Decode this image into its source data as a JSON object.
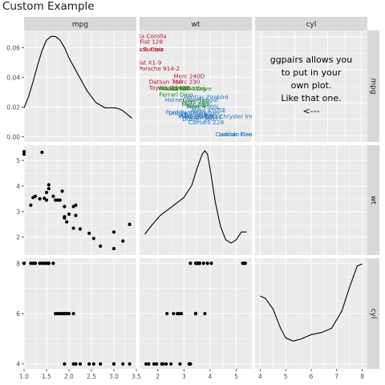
{
  "title": "Custom Example",
  "strips": {
    "top": [
      "mpg",
      "wt",
      "cyl"
    ],
    "right": [
      "mpg",
      "wt",
      "cyl"
    ]
  },
  "colors": {
    "panel_bg": "#ebebeb",
    "strip_bg": "#d9d9d9",
    "grid_major": "#ffffff",
    "tick_text": "#4d4d4d",
    "strip_text": "#1a1a1a",
    "label_red": "#b2182b",
    "label_green": "#1b8a1b",
    "label_blue": "#1f6fc1"
  },
  "custom_panel_text": [
    "ggpairs allows you",
    "to put in your",
    "own plot.",
    "Like that one.",
    "<---"
  ],
  "chart_data": {
    "type": "scatter",
    "kind": "pairs-matrix",
    "variables": [
      "mpg",
      "wt",
      "cyl"
    ],
    "axes": {
      "x": [
        {
          "var": "mpg",
          "range": [
            1.0,
            3.5
          ],
          "ticks": [
            1.0,
            1.5,
            2.0,
            2.5,
            3.0,
            3.5
          ]
        },
        {
          "var": "wt",
          "range": [
            1.3,
            5.6
          ],
          "ticks": [
            2,
            3,
            4,
            5
          ]
        },
        {
          "var": "cyl",
          "range": [
            3.8,
            8.2
          ],
          "ticks": [
            4,
            5,
            6,
            7,
            8
          ]
        }
      ],
      "y": [
        {
          "var": "mpg",
          "range": [
            -0.0035,
            0.0715
          ],
          "ticks": [
            0.0,
            0.02,
            0.04,
            0.06
          ]
        },
        {
          "var": "wt",
          "range": [
            1.3,
            5.6
          ],
          "ticks": [
            2,
            3,
            4,
            5
          ]
        },
        {
          "var": "cyl",
          "range": [
            3.8,
            8.2
          ],
          "ticks": [
            4,
            6,
            8
          ]
        }
      ]
    },
    "grid": true,
    "mpg": [
      1.0,
      1.0,
      1.15,
      1.2,
      1.25,
      1.35,
      1.4,
      1.45,
      1.5,
      1.5,
      1.55,
      1.55,
      1.65,
      1.7,
      1.75,
      1.8,
      1.85,
      1.9,
      1.9,
      1.9,
      1.95,
      2.0,
      2.1,
      2.1,
      2.15,
      2.15,
      2.25,
      2.45,
      2.55,
      2.7,
      3.0,
      3.0,
      3.2,
      3.35
    ],
    "wt": [
      5.35,
      5.25,
      3.25,
      3.55,
      3.6,
      3.5,
      5.32,
      3.52,
      3.45,
      3.75,
      3.9,
      4.05,
      3.6,
      3.45,
      3.45,
      3.45,
      3.8,
      2.8,
      3.2,
      2.75,
      2.6,
      2.9,
      2.35,
      3.2,
      3.25,
      2.85,
      2.32,
      2.15,
      1.95,
      1.65,
      1.55,
      2.2,
      1.85,
      2.5
    ],
    "cyl": [
      8,
      8,
      8,
      8,
      8,
      8,
      8,
      8,
      8,
      8,
      8,
      8,
      8,
      6,
      6,
      6,
      6,
      6,
      4,
      6,
      6,
      6,
      6,
      4,
      4,
      4,
      4,
      4,
      4,
      4,
      4,
      4,
      4,
      4
    ],
    "density_mpg": {
      "x": [
        1.0,
        1.1,
        1.2,
        1.3,
        1.4,
        1.5,
        1.6,
        1.7,
        1.8,
        1.9,
        2.0,
        2.2,
        2.4,
        2.6,
        2.8,
        3.0,
        3.1,
        3.2,
        3.3,
        3.4
      ],
      "y": [
        0.0195,
        0.027,
        0.037,
        0.048,
        0.058,
        0.065,
        0.0675,
        0.0675,
        0.065,
        0.06,
        0.053,
        0.042,
        0.031,
        0.023,
        0.0195,
        0.0195,
        0.019,
        0.0175,
        0.015,
        0.0125
      ]
    },
    "density_wt": {
      "x": [
        1.5,
        1.8,
        2.1,
        2.5,
        3.0,
        3.3,
        3.5,
        3.7,
        3.8,
        3.9,
        4.0,
        4.2,
        4.4,
        4.6,
        4.8,
        5.0,
        5.2,
        5.4
      ],
      "y": [
        0.13,
        0.22,
        0.3,
        0.37,
        0.46,
        0.57,
        0.72,
        0.85,
        0.88,
        0.85,
        0.72,
        0.42,
        0.2,
        0.08,
        0.05,
        0.08,
        0.15,
        0.15
      ]
    },
    "density_cyl": {
      "x": [
        4.0,
        4.2,
        4.5,
        4.8,
        5.0,
        5.3,
        5.6,
        6.0,
        6.4,
        6.8,
        7.2,
        7.5,
        7.8,
        8.0
      ],
      "y": [
        0.62,
        0.6,
        0.5,
        0.32,
        0.23,
        0.2,
        0.22,
        0.26,
        0.28,
        0.32,
        0.48,
        0.7,
        0.9,
        0.92
      ]
    },
    "car_labels": [
      {
        "name": "Toyota Corolla",
        "x": 1.55,
        "y": 0.0665,
        "group": "red"
      },
      {
        "name": "Fiat 128",
        "x": 1.75,
        "y": 0.0625,
        "group": "red"
      },
      {
        "name": "Lotus Europa",
        "x": 1.5,
        "y": 0.0575,
        "group": "red"
      },
      {
        "name": "Honda Civic",
        "x": 1.58,
        "y": 0.0575,
        "group": "red"
      },
      {
        "name": "Fiat X1-9",
        "x": 1.65,
        "y": 0.0485,
        "group": "red"
      },
      {
        "name": "Porsche 914-2",
        "x": 2.05,
        "y": 0.0445,
        "group": "red"
      },
      {
        "name": "Merc 240D",
        "x": 3.2,
        "y": 0.0395,
        "group": "red"
      },
      {
        "name": "Datsun 710",
        "x": 2.3,
        "y": 0.0355,
        "group": "red"
      },
      {
        "name": "Merc 230",
        "x": 3.1,
        "y": 0.0355,
        "group": "red"
      },
      {
        "name": "Toyota Corona",
        "x": 2.45,
        "y": 0.0315,
        "group": "red"
      },
      {
        "name": "Volvo 142E",
        "x": 2.6,
        "y": 0.0315,
        "group": "green"
      },
      {
        "name": "Mazda RX4 Wag",
        "x": 2.95,
        "y": 0.031,
        "group": "green"
      },
      {
        "name": "Hornet 4 Drive",
        "x": 3.25,
        "y": 0.031,
        "group": "green"
      },
      {
        "name": "Ferrari Dino",
        "x": 2.7,
        "y": 0.027,
        "group": "green"
      },
      {
        "name": "Pontiac Firebird",
        "x": 3.85,
        "y": 0.0255,
        "group": "blue"
      },
      {
        "name": "Hornet Sportabout",
        "x": 3.3,
        "y": 0.0235,
        "group": "blue"
      },
      {
        "name": "Merc 280",
        "x": 3.45,
        "y": 0.0225,
        "group": "green"
      },
      {
        "name": "Merc 280C",
        "x": 3.5,
        "y": 0.0205,
        "group": "green"
      },
      {
        "name": "Valiant",
        "x": 3.45,
        "y": 0.0195,
        "group": "green"
      },
      {
        "name": "Merc 450SL",
        "x": 3.75,
        "y": 0.019,
        "group": "blue"
      },
      {
        "name": "Merc 450SE",
        "x": 3.95,
        "y": 0.0165,
        "group": "blue"
      },
      {
        "name": "Ford Pantera L",
        "x": 3.1,
        "y": 0.015,
        "group": "blue"
      },
      {
        "name": "Dodge Challenger",
        "x": 3.4,
        "y": 0.0145,
        "group": "blue"
      },
      {
        "name": "AMC Javelin",
        "x": 3.5,
        "y": 0.013,
        "group": "blue"
      },
      {
        "name": "Merc 450SLC",
        "x": 3.75,
        "y": 0.012,
        "group": "blue"
      },
      {
        "name": "Maserati Bora",
        "x": 3.55,
        "y": 0.0125,
        "group": "blue"
      },
      {
        "name": "Chrysler Imperial",
        "x": 5.3,
        "y": 0.0125,
        "group": "blue"
      },
      {
        "name": "Duster 360",
        "x": 3.55,
        "y": 0.0105,
        "group": "blue"
      },
      {
        "name": "Camaro Z28",
        "x": 3.85,
        "y": 0.0083,
        "group": "blue"
      },
      {
        "name": "Lincoln Continental",
        "x": 5.4,
        "y": 0.0003,
        "group": "blue"
      },
      {
        "name": "Cadillac Fleetwood",
        "x": 5.25,
        "y": 0.0003,
        "group": "blue"
      }
    ]
  }
}
